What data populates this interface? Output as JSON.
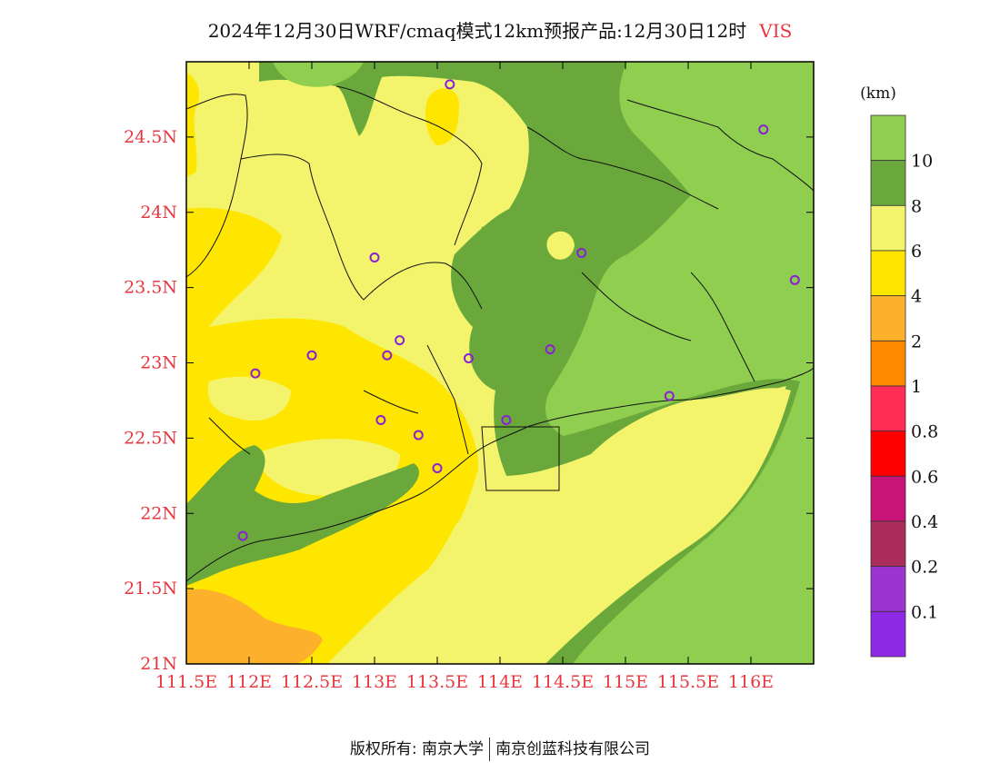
{
  "title": {
    "main": "2024年12月30日WRF/cmaq模式12km预报产品:12月30日12时",
    "variable": "VIS"
  },
  "axes": {
    "lon_ticks": [
      "111.5E",
      "112E",
      "112.5E",
      "113E",
      "113.5E",
      "114E",
      "114.5E",
      "115E",
      "115.5E",
      "116E"
    ],
    "lat_ticks": [
      "21N",
      "21.5N",
      "22N",
      "22.5N",
      "23N",
      "23.5N",
      "24N",
      "24.5N"
    ],
    "tick_color": "#e8373f",
    "lon_range": [
      111.5,
      116.5
    ],
    "lat_range": [
      21.0,
      25.0
    ]
  },
  "legend": {
    "unit": "(km)",
    "labels": [
      "10",
      "8",
      "6",
      "4",
      "2",
      "1",
      "0.8",
      "0.6",
      "0.4",
      "0.2",
      "0.1"
    ],
    "colors": [
      "#8fce4f",
      "#6aa83b",
      "#f3f46c",
      "#ffe600",
      "#fcb02b",
      "#ff8a00",
      "#ff2d55",
      "#ff0000",
      "#c81478",
      "#aa2d5a",
      "#9a35d2",
      "#8e2ae6"
    ]
  },
  "stations": [
    {
      "lon": 113.6,
      "lat": 24.85
    },
    {
      "lon": 116.1,
      "lat": 24.55
    },
    {
      "lon": 113.0,
      "lat": 23.7
    },
    {
      "lon": 114.65,
      "lat": 23.73
    },
    {
      "lon": 116.35,
      "lat": 23.55
    },
    {
      "lon": 113.2,
      "lat": 23.15
    },
    {
      "lon": 112.5,
      "lat": 23.05
    },
    {
      "lon": 113.1,
      "lat": 23.05
    },
    {
      "lon": 113.75,
      "lat": 23.03
    },
    {
      "lon": 114.4,
      "lat": 23.09
    },
    {
      "lon": 112.05,
      "lat": 22.93
    },
    {
      "lon": 115.35,
      "lat": 22.78
    },
    {
      "lon": 113.05,
      "lat": 22.62
    },
    {
      "lon": 114.05,
      "lat": 22.62
    },
    {
      "lon": 113.35,
      "lat": 22.52
    },
    {
      "lon": 113.5,
      "lat": 22.3
    },
    {
      "lon": 111.95,
      "lat": 21.85
    }
  ],
  "footer": {
    "left": "版权所有: 南京大学",
    "right": "南京创蓝科技有限公司"
  }
}
